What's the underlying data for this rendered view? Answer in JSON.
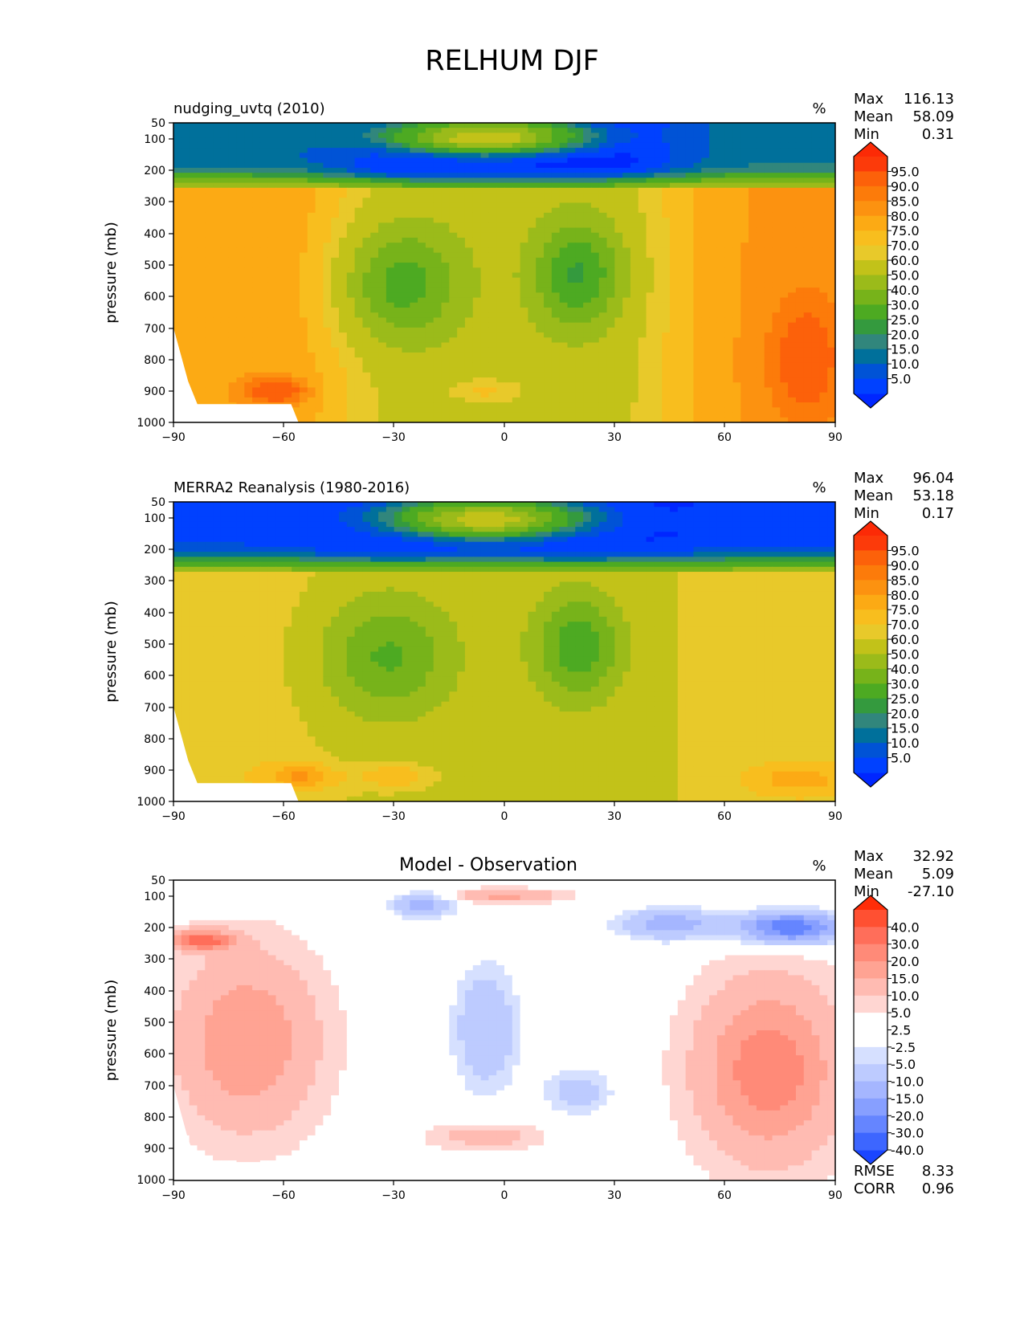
{
  "figure": {
    "title": "RELHUM DJF"
  },
  "colors": {
    "abs_levels": [
      "#0026ff",
      "#0041ff",
      "#0053d6",
      "#00709b",
      "#31867c",
      "#349a3e",
      "#4daa22",
      "#77b31a",
      "#9bbb1a",
      "#c2c219",
      "#e8c92a",
      "#f8be1e",
      "#fcaa14",
      "#fc9210",
      "#fc7b0a",
      "#fc610a",
      "#fc3a0a",
      "#fc2a06"
    ],
    "diff_levels": [
      "#1a46ff",
      "#3d66ff",
      "#6585ff",
      "#879fff",
      "#a5b6ff",
      "#bdcbff",
      "#d6e0ff",
      "#ffffff",
      "#ffffff",
      "#ffd6d2",
      "#ffbbb2",
      "#ffa393",
      "#ff8a78",
      "#ff6e5a",
      "#ff5032",
      "#ff2d08"
    ]
  },
  "chart_data": [
    {
      "type": "heatmap",
      "title": "nudging_uvtq (2010)",
      "units": "%",
      "ylabel": "pressure (mb)",
      "xlabel": "",
      "x_ticks": [
        "−90",
        "−60",
        "−30",
        "0",
        "30",
        "60",
        "90"
      ],
      "y_ticks": [
        "50",
        "100",
        "200",
        "300",
        "400",
        "500",
        "600",
        "700",
        "800",
        "900",
        "1000"
      ],
      "xlim": [
        -90,
        90
      ],
      "ylim": [
        1000,
        50
      ],
      "colorbar_levels": [
        "95.0",
        "90.0",
        "85.0",
        "80.0",
        "75.0",
        "70.0",
        "60.0",
        "50.0",
        "40.0",
        "30.0",
        "25.0",
        "20.0",
        "15.0",
        "10.0",
        "5.0"
      ],
      "stats": [
        {
          "label": "Max",
          "value": "116.13"
        },
        {
          "label": "Mean",
          "value": "58.09"
        },
        {
          "label": "Min",
          "value": "0.31"
        }
      ]
    },
    {
      "type": "heatmap",
      "title": "MERRA2 Reanalysis (1980-2016)",
      "units": "%",
      "ylabel": "pressure (mb)",
      "xlabel": "",
      "x_ticks": [
        "−90",
        "−60",
        "−30",
        "0",
        "30",
        "60",
        "90"
      ],
      "y_ticks": [
        "50",
        "100",
        "200",
        "300",
        "400",
        "500",
        "600",
        "700",
        "800",
        "900",
        "1000"
      ],
      "xlim": [
        -90,
        90
      ],
      "ylim": [
        1000,
        50
      ],
      "colorbar_levels": [
        "95.0",
        "90.0",
        "85.0",
        "80.0",
        "75.0",
        "70.0",
        "60.0",
        "50.0",
        "40.0",
        "30.0",
        "25.0",
        "20.0",
        "15.0",
        "10.0",
        "5.0"
      ],
      "stats": [
        {
          "label": "Max",
          "value": "96.04"
        },
        {
          "label": "Mean",
          "value": "53.18"
        },
        {
          "label": "Min",
          "value": "0.17"
        }
      ]
    },
    {
      "type": "heatmap",
      "title": "Model - Observation",
      "units": "%",
      "ylabel": "pressure (mb)",
      "xlabel": "",
      "x_ticks": [
        "−90",
        "−60",
        "−30",
        "0",
        "30",
        "60",
        "90"
      ],
      "y_ticks": [
        "50",
        "100",
        "200",
        "300",
        "400",
        "500",
        "600",
        "700",
        "800",
        "900",
        "1000"
      ],
      "xlim": [
        -90,
        90
      ],
      "ylim": [
        1000,
        50
      ],
      "colorbar_levels": [
        "40.0",
        "30.0",
        "20.0",
        "15.0",
        "10.0",
        "5.0",
        "2.5",
        "-2.5",
        "-5.0",
        "-10.0",
        "-15.0",
        "-20.0",
        "-30.0",
        "-40.0"
      ],
      "stats": [
        {
          "label": "Max",
          "value": "32.92"
        },
        {
          "label": "Mean",
          "value": "5.09"
        },
        {
          "label": "Min",
          "value": "-27.10"
        }
      ],
      "metrics": [
        {
          "label": "RMSE",
          "value": "8.33"
        },
        {
          "label": "CORR",
          "value": "0.96"
        }
      ]
    }
  ]
}
